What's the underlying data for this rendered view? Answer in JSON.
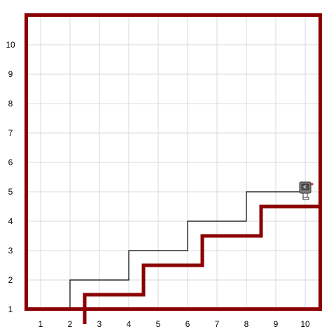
{
  "grid": {
    "x_labels": [
      "1",
      "2",
      "3",
      "4",
      "5",
      "6",
      "7",
      "8",
      "9",
      "10"
    ],
    "y_labels": [
      "10",
      "9",
      "8",
      "7",
      "6",
      "5",
      "4",
      "3",
      "2",
      "1"
    ],
    "gridline_color": "#d9d9d9"
  },
  "colors": {
    "wall": "#8b0000",
    "trail": "#000000",
    "background": "#ffffff"
  },
  "world": {
    "columns": 10,
    "rows": 10,
    "staircase_steps": [
      {
        "from_x": 2.5,
        "to_x": 4.5,
        "level": 1.5
      },
      {
        "from_x": 4.5,
        "to_x": 6.5,
        "level": 2.5
      },
      {
        "from_x": 6.5,
        "to_x": 8.5,
        "level": 3.5
      },
      {
        "from_x": 8.5,
        "to_x": 10.5,
        "level": 4.5
      }
    ],
    "trail_points": [
      [
        1,
        1
      ],
      [
        2,
        1
      ],
      [
        2,
        2
      ],
      [
        4,
        2
      ],
      [
        4,
        3
      ],
      [
        6,
        3
      ],
      [
        6,
        4
      ],
      [
        8,
        4
      ],
      [
        8,
        5
      ],
      [
        10,
        5
      ]
    ]
  },
  "robot": {
    "icon": "robot-icon",
    "x": 10,
    "y": 5,
    "facing": "east",
    "body_color": "#7f7f7f",
    "accent_color": "#c0392b"
  }
}
